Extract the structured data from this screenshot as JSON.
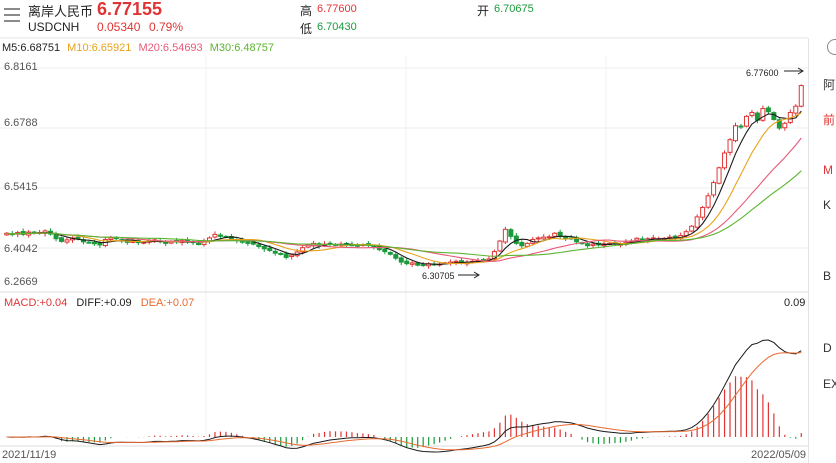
{
  "header": {
    "name": "离岸人民币",
    "symbol": "USDCNH",
    "price": "6.77155",
    "change": "0.05340",
    "change_pct": "0.79%",
    "high_label": "高",
    "high_value": "6.77600",
    "low_label": "低",
    "low_value": "6.70430",
    "open_label": "开",
    "open_value": "6.70675"
  },
  "ma_legend": {
    "ma5": "M5:6.68751",
    "ma10": "M10:6.65921",
    "ma20": "M20:6.54693",
    "ma30": "M30:6.48757"
  },
  "macd_legend": {
    "macd": "MACD:+0.04",
    "diff": "DIFF:+0.09",
    "dea": "DEA:+0.07"
  },
  "chart_data": {
    "type": "candlestick",
    "y_ticks": [
      "6.8161",
      "6.6788",
      "6.5415",
      "6.4042",
      "6.2669"
    ],
    "ylim": [
      6.2669,
      6.8161
    ],
    "x_start": "2021/11/19",
    "x_end": "2022/05/09",
    "annotations": [
      {
        "text": "6.77600",
        "value": 6.776
      },
      {
        "text": "6.30705",
        "value": 6.30705
      }
    ],
    "closes": [
      6.392,
      6.389,
      6.394,
      6.389,
      6.395,
      6.392,
      6.394,
      6.398,
      6.39,
      6.378,
      6.371,
      6.375,
      6.38,
      6.378,
      6.37,
      6.368,
      6.365,
      6.362,
      6.376,
      6.38,
      6.378,
      6.372,
      6.37,
      6.371,
      6.368,
      6.369,
      6.373,
      6.375,
      6.37,
      6.366,
      6.371,
      6.37,
      6.374,
      6.369,
      6.368,
      6.364,
      6.372,
      6.38,
      6.389,
      6.384,
      6.382,
      6.378,
      6.374,
      6.369,
      6.366,
      6.364,
      6.358,
      6.352,
      6.348,
      6.341,
      6.338,
      6.33,
      6.336,
      6.344,
      6.355,
      6.362,
      6.366,
      6.36,
      6.364,
      6.365,
      6.362,
      6.364,
      6.365,
      6.362,
      6.36,
      6.363,
      6.361,
      6.358,
      6.35,
      6.345,
      6.338,
      6.328,
      6.318,
      6.314,
      6.316,
      6.31,
      6.311,
      6.314,
      6.312,
      6.313,
      6.316,
      6.318,
      6.32,
      6.316,
      6.318,
      6.32,
      6.322,
      6.324,
      6.326,
      6.345,
      6.372,
      6.402,
      6.384,
      6.366,
      6.36,
      6.366,
      6.376,
      6.38,
      6.382,
      6.383,
      6.392,
      6.384,
      6.38,
      6.379,
      6.37,
      6.366,
      6.36,
      6.364,
      6.362,
      6.365,
      6.366,
      6.366,
      6.364,
      6.369,
      6.372,
      6.379,
      6.374,
      6.378,
      6.38,
      6.378,
      6.379,
      6.382,
      6.38,
      6.386,
      6.396,
      6.41,
      6.434,
      6.458,
      6.488,
      6.522,
      6.56,
      6.598,
      6.632,
      6.668,
      6.666,
      6.692,
      6.702,
      6.682,
      6.712,
      6.704,
      6.684,
      6.662,
      6.674,
      6.702,
      6.718,
      6.771
    ],
    "x_labels": [
      "2021/11/19",
      "2022/05/09"
    ]
  },
  "macd_top_value": "0.09",
  "right_panel": {
    "items": [
      "阿",
      "前",
      "M",
      "K",
      "B",
      "D",
      "EX"
    ]
  }
}
